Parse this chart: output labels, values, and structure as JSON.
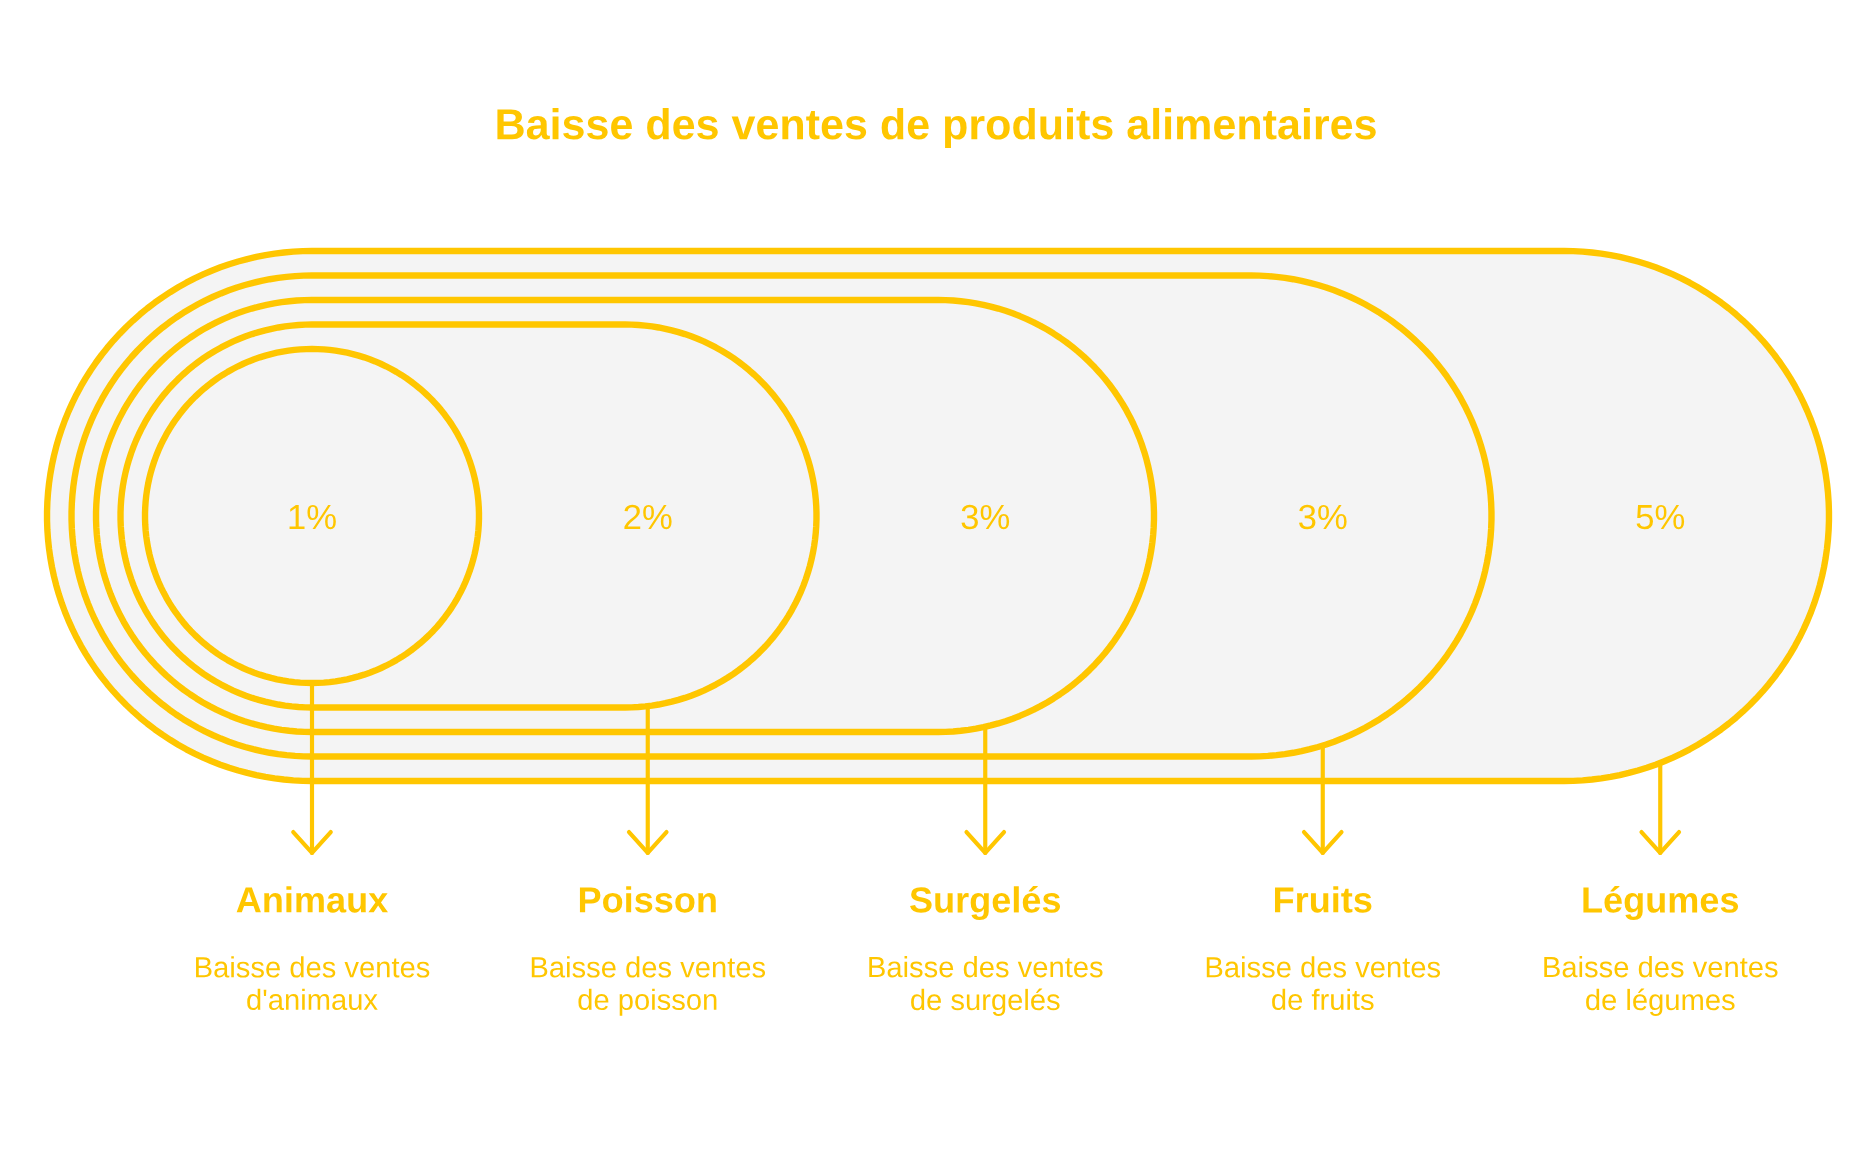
{
  "chart_data": {
    "type": "other",
    "title": "Baisse des ventes de produits alimentaires",
    "categories": [
      "Animaux",
      "Poisson",
      "Surgelés",
      "Fruits",
      "Légumes"
    ],
    "values": [
      1,
      2,
      3,
      3,
      5
    ],
    "value_labels": [
      "1%",
      "2%",
      "3%",
      "3%",
      "5%"
    ],
    "annotations": [
      "Baisse des ventes\nd'animaux",
      "Baisse des ventes\nde poisson",
      "Baisse des ventes\nde surgelés",
      "Baisse des ventes\nde fruits",
      "Baisse des ventes\nde légumes"
    ],
    "color": "#ffc600"
  }
}
